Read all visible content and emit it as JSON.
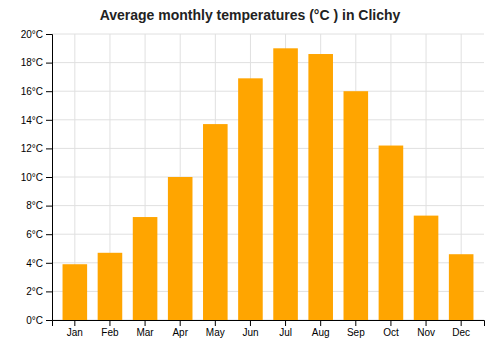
{
  "chart_data": {
    "type": "bar",
    "title": "Average monthly temperatures (°C ) in Clichy",
    "categories": [
      "Jan",
      "Feb",
      "Mar",
      "Apr",
      "May",
      "Jun",
      "Jul",
      "Aug",
      "Sep",
      "Oct",
      "Nov",
      "Dec"
    ],
    "values": [
      3.9,
      4.7,
      7.2,
      10.0,
      13.7,
      16.9,
      19.0,
      18.6,
      16.0,
      12.2,
      7.3,
      4.6
    ],
    "color": "#FFA500",
    "ylim": [
      0,
      20
    ],
    "yticks": [
      {
        "value": 0,
        "label": "0°C"
      },
      {
        "value": 2,
        "label": "2°C"
      },
      {
        "value": 4,
        "label": "4°C"
      },
      {
        "value": 6,
        "label": "6°C"
      },
      {
        "value": 8,
        "label": "8°C"
      },
      {
        "value": 10,
        "label": "10°C"
      },
      {
        "value": 12,
        "label": "12°C"
      },
      {
        "value": 14,
        "label": "14°C"
      },
      {
        "value": 16,
        "label": "16°C"
      },
      {
        "value": 18,
        "label": "18°C"
      },
      {
        "value": 20,
        "label": "20°C"
      }
    ],
    "grid": true
  }
}
